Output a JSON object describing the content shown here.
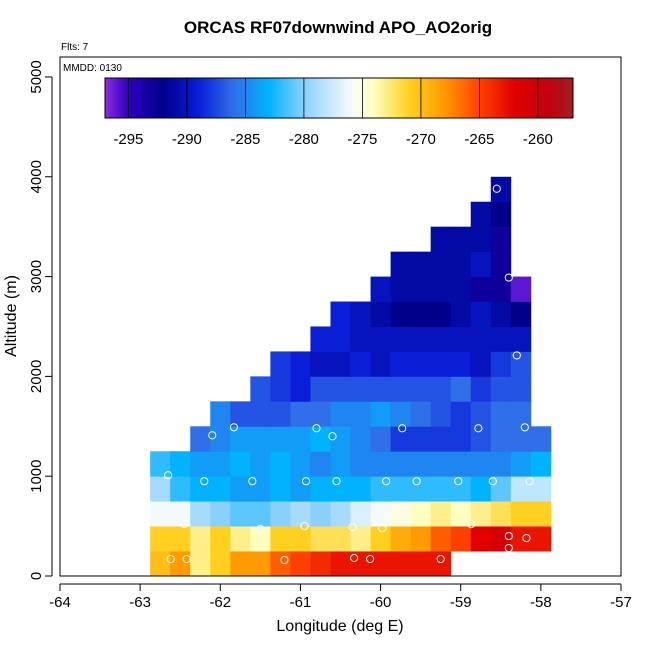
{
  "chart_data": {
    "type": "heatmap",
    "title": "ORCAS RF07downwind APO_AO2orig",
    "flights_label": "Flts: 7",
    "date_label": "MMDD: 0130",
    "xlabel": "Longitude (deg E)",
    "ylabel": "Altitude (m)",
    "xlim": [
      -64,
      -57
    ],
    "ylim": [
      0,
      5200
    ],
    "xticks": [
      -64,
      -63,
      -62,
      -61,
      -60,
      -59,
      -58,
      -57
    ],
    "yticks": [
      0,
      1000,
      2000,
      3000,
      4000,
      5000
    ],
    "colorbar": {
      "range": [
        -297,
        -257
      ],
      "ticks": [
        -295,
        -290,
        -285,
        -280,
        -275,
        -270,
        -265,
        -260
      ]
    },
    "cell": {
      "dx": 0.25,
      "dy": 250
    },
    "cells": [
      {
        "lon": -62.75,
        "alt": 125,
        "v": -270
      },
      {
        "lon": -62.5,
        "alt": 125,
        "v": -268
      },
      {
        "lon": -62.25,
        "alt": 125,
        "v": -273
      },
      {
        "lon": -62.0,
        "alt": 125,
        "v": -271
      },
      {
        "lon": -61.75,
        "alt": 125,
        "v": -268
      },
      {
        "lon": -61.5,
        "alt": 125,
        "v": -268
      },
      {
        "lon": -61.25,
        "alt": 125,
        "v": -266
      },
      {
        "lon": -61.0,
        "alt": 125,
        "v": -265
      },
      {
        "lon": -60.75,
        "alt": 125,
        "v": -264
      },
      {
        "lon": -60.5,
        "alt": 125,
        "v": -263
      },
      {
        "lon": -60.25,
        "alt": 125,
        "v": -263
      },
      {
        "lon": -60.0,
        "alt": 125,
        "v": -263
      },
      {
        "lon": -59.75,
        "alt": 125,
        "v": -263
      },
      {
        "lon": -59.5,
        "alt": 125,
        "v": -263
      },
      {
        "lon": -59.25,
        "alt": 125,
        "v": -263
      },
      {
        "lon": -62.75,
        "alt": 375,
        "v": -271
      },
      {
        "lon": -62.5,
        "alt": 375,
        "v": -271
      },
      {
        "lon": -62.25,
        "alt": 375,
        "v": -273
      },
      {
        "lon": -62.0,
        "alt": 375,
        "v": -271
      },
      {
        "lon": -61.75,
        "alt": 375,
        "v": -273
      },
      {
        "lon": -61.5,
        "alt": 375,
        "v": -274
      },
      {
        "lon": -61.25,
        "alt": 375,
        "v": -271
      },
      {
        "lon": -61.0,
        "alt": 375,
        "v": -271
      },
      {
        "lon": -60.75,
        "alt": 375,
        "v": -272
      },
      {
        "lon": -60.5,
        "alt": 375,
        "v": -272
      },
      {
        "lon": -60.25,
        "alt": 375,
        "v": -273
      },
      {
        "lon": -60.0,
        "alt": 375,
        "v": -271
      },
      {
        "lon": -59.75,
        "alt": 375,
        "v": -269
      },
      {
        "lon": -59.5,
        "alt": 375,
        "v": -268
      },
      {
        "lon": -59.25,
        "alt": 375,
        "v": -266
      },
      {
        "lon": -59.0,
        "alt": 375,
        "v": -265
      },
      {
        "lon": -58.75,
        "alt": 375,
        "v": -262
      },
      {
        "lon": -58.5,
        "alt": 375,
        "v": -261
      },
      {
        "lon": -58.25,
        "alt": 375,
        "v": -263
      },
      {
        "lon": -58.0,
        "alt": 375,
        "v": -263
      },
      {
        "lon": -62.75,
        "alt": 625,
        "v": -276
      },
      {
        "lon": -62.5,
        "alt": 625,
        "v": -276
      },
      {
        "lon": -62.25,
        "alt": 625,
        "v": -279
      },
      {
        "lon": -62.0,
        "alt": 625,
        "v": -280
      },
      {
        "lon": -61.75,
        "alt": 625,
        "v": -281
      },
      {
        "lon": -61.5,
        "alt": 625,
        "v": -281
      },
      {
        "lon": -61.25,
        "alt": 625,
        "v": -280
      },
      {
        "lon": -61.0,
        "alt": 625,
        "v": -279
      },
      {
        "lon": -60.75,
        "alt": 625,
        "v": -280
      },
      {
        "lon": -60.5,
        "alt": 625,
        "v": -279
      },
      {
        "lon": -60.25,
        "alt": 625,
        "v": -277
      },
      {
        "lon": -60.0,
        "alt": 625,
        "v": -276
      },
      {
        "lon": -59.75,
        "alt": 625,
        "v": -275
      },
      {
        "lon": -59.5,
        "alt": 625,
        "v": -274
      },
      {
        "lon": -59.25,
        "alt": 625,
        "v": -273
      },
      {
        "lon": -59.0,
        "alt": 625,
        "v": -274
      },
      {
        "lon": -58.75,
        "alt": 625,
        "v": -273
      },
      {
        "lon": -58.5,
        "alt": 625,
        "v": -272
      },
      {
        "lon": -58.25,
        "alt": 625,
        "v": -271
      },
      {
        "lon": -58.0,
        "alt": 625,
        "v": -271
      },
      {
        "lon": -62.75,
        "alt": 875,
        "v": -279
      },
      {
        "lon": -62.5,
        "alt": 875,
        "v": -282
      },
      {
        "lon": -62.25,
        "alt": 875,
        "v": -283
      },
      {
        "lon": -62.0,
        "alt": 875,
        "v": -283
      },
      {
        "lon": -61.75,
        "alt": 875,
        "v": -284
      },
      {
        "lon": -61.5,
        "alt": 875,
        "v": -284
      },
      {
        "lon": -61.25,
        "alt": 875,
        "v": -283
      },
      {
        "lon": -61.0,
        "alt": 875,
        "v": -284
      },
      {
        "lon": -60.75,
        "alt": 875,
        "v": -283
      },
      {
        "lon": -60.5,
        "alt": 875,
        "v": -283
      },
      {
        "lon": -60.25,
        "alt": 875,
        "v": -283
      },
      {
        "lon": -60.0,
        "alt": 875,
        "v": -282
      },
      {
        "lon": -59.75,
        "alt": 875,
        "v": -282
      },
      {
        "lon": -59.5,
        "alt": 875,
        "v": -282
      },
      {
        "lon": -59.25,
        "alt": 875,
        "v": -282
      },
      {
        "lon": -59.0,
        "alt": 875,
        "v": -282
      },
      {
        "lon": -58.75,
        "alt": 875,
        "v": -283
      },
      {
        "lon": -58.5,
        "alt": 875,
        "v": -281
      },
      {
        "lon": -58.25,
        "alt": 875,
        "v": -278
      },
      {
        "lon": -58.0,
        "alt": 875,
        "v": -278
      },
      {
        "lon": -62.75,
        "alt": 1125,
        "v": -282
      },
      {
        "lon": -62.5,
        "alt": 1125,
        "v": -283
      },
      {
        "lon": -62.25,
        "alt": 1125,
        "v": -284
      },
      {
        "lon": -62.0,
        "alt": 1125,
        "v": -284
      },
      {
        "lon": -61.75,
        "alt": 1125,
        "v": -283
      },
      {
        "lon": -61.5,
        "alt": 1125,
        "v": -284
      },
      {
        "lon": -61.25,
        "alt": 1125,
        "v": -283
      },
      {
        "lon": -61.0,
        "alt": 1125,
        "v": -284
      },
      {
        "lon": -60.75,
        "alt": 1125,
        "v": -285
      },
      {
        "lon": -60.5,
        "alt": 1125,
        "v": -284
      },
      {
        "lon": -60.25,
        "alt": 1125,
        "v": -285
      },
      {
        "lon": -60.0,
        "alt": 1125,
        "v": -285
      },
      {
        "lon": -59.75,
        "alt": 1125,
        "v": -285
      },
      {
        "lon": -59.5,
        "alt": 1125,
        "v": -285
      },
      {
        "lon": -59.25,
        "alt": 1125,
        "v": -285
      },
      {
        "lon": -59.0,
        "alt": 1125,
        "v": -285
      },
      {
        "lon": -58.75,
        "alt": 1125,
        "v": -285
      },
      {
        "lon": -58.5,
        "alt": 1125,
        "v": -285
      },
      {
        "lon": -58.25,
        "alt": 1125,
        "v": -284
      },
      {
        "lon": -58.0,
        "alt": 1125,
        "v": -283
      },
      {
        "lon": -62.25,
        "alt": 1375,
        "v": -286
      },
      {
        "lon": -62.0,
        "alt": 1375,
        "v": -285
      },
      {
        "lon": -61.75,
        "alt": 1375,
        "v": -284
      },
      {
        "lon": -61.5,
        "alt": 1375,
        "v": -284
      },
      {
        "lon": -61.25,
        "alt": 1375,
        "v": -284
      },
      {
        "lon": -61.0,
        "alt": 1375,
        "v": -284
      },
      {
        "lon": -60.75,
        "alt": 1375,
        "v": -283
      },
      {
        "lon": -60.5,
        "alt": 1375,
        "v": -284
      },
      {
        "lon": -60.25,
        "alt": 1375,
        "v": -285
      },
      {
        "lon": -60.0,
        "alt": 1375,
        "v": -286
      },
      {
        "lon": -59.75,
        "alt": 1375,
        "v": -288
      },
      {
        "lon": -59.5,
        "alt": 1375,
        "v": -288
      },
      {
        "lon": -59.25,
        "alt": 1375,
        "v": -288
      },
      {
        "lon": -59.0,
        "alt": 1375,
        "v": -288
      },
      {
        "lon": -58.75,
        "alt": 1375,
        "v": -287
      },
      {
        "lon": -58.5,
        "alt": 1375,
        "v": -286
      },
      {
        "lon": -58.25,
        "alt": 1375,
        "v": -286
      },
      {
        "lon": -58.0,
        "alt": 1375,
        "v": -286
      },
      {
        "lon": -62.0,
        "alt": 1625,
        "v": -285
      },
      {
        "lon": -61.75,
        "alt": 1625,
        "v": -287
      },
      {
        "lon": -61.5,
        "alt": 1625,
        "v": -287
      },
      {
        "lon": -61.25,
        "alt": 1625,
        "v": -287
      },
      {
        "lon": -61.0,
        "alt": 1625,
        "v": -286
      },
      {
        "lon": -60.75,
        "alt": 1625,
        "v": -286
      },
      {
        "lon": -60.5,
        "alt": 1625,
        "v": -285
      },
      {
        "lon": -60.25,
        "alt": 1625,
        "v": -285
      },
      {
        "lon": -60.0,
        "alt": 1625,
        "v": -284
      },
      {
        "lon": -59.75,
        "alt": 1625,
        "v": -285
      },
      {
        "lon": -59.5,
        "alt": 1625,
        "v": -286
      },
      {
        "lon": -59.25,
        "alt": 1625,
        "v": -287
      },
      {
        "lon": -59.0,
        "alt": 1625,
        "v": -288
      },
      {
        "lon": -58.75,
        "alt": 1625,
        "v": -287
      },
      {
        "lon": -58.5,
        "alt": 1625,
        "v": -286
      },
      {
        "lon": -58.25,
        "alt": 1625,
        "v": -286
      },
      {
        "lon": -61.5,
        "alt": 1875,
        "v": -287
      },
      {
        "lon": -61.25,
        "alt": 1875,
        "v": -288
      },
      {
        "lon": -61.0,
        "alt": 1875,
        "v": -289
      },
      {
        "lon": -60.75,
        "alt": 1875,
        "v": -287
      },
      {
        "lon": -60.5,
        "alt": 1875,
        "v": -287
      },
      {
        "lon": -60.25,
        "alt": 1875,
        "v": -287
      },
      {
        "lon": -60.0,
        "alt": 1875,
        "v": -287
      },
      {
        "lon": -59.75,
        "alt": 1875,
        "v": -287
      },
      {
        "lon": -59.5,
        "alt": 1875,
        "v": -287
      },
      {
        "lon": -59.25,
        "alt": 1875,
        "v": -287
      },
      {
        "lon": -59.0,
        "alt": 1875,
        "v": -286
      },
      {
        "lon": -58.75,
        "alt": 1875,
        "v": -288
      },
      {
        "lon": -58.5,
        "alt": 1875,
        "v": -287
      },
      {
        "lon": -58.25,
        "alt": 1875,
        "v": -287
      },
      {
        "lon": -61.25,
        "alt": 2125,
        "v": -288
      },
      {
        "lon": -61.0,
        "alt": 2125,
        "v": -289
      },
      {
        "lon": -60.75,
        "alt": 2125,
        "v": -290
      },
      {
        "lon": -60.5,
        "alt": 2125,
        "v": -290
      },
      {
        "lon": -60.25,
        "alt": 2125,
        "v": -289
      },
      {
        "lon": -60.0,
        "alt": 2125,
        "v": -290
      },
      {
        "lon": -59.75,
        "alt": 2125,
        "v": -289
      },
      {
        "lon": -59.5,
        "alt": 2125,
        "v": -289
      },
      {
        "lon": -59.25,
        "alt": 2125,
        "v": -289
      },
      {
        "lon": -59.0,
        "alt": 2125,
        "v": -289
      },
      {
        "lon": -58.75,
        "alt": 2125,
        "v": -290
      },
      {
        "lon": -58.5,
        "alt": 2125,
        "v": -288
      },
      {
        "lon": -58.25,
        "alt": 2125,
        "v": -287
      },
      {
        "lon": -60.75,
        "alt": 2375,
        "v": -289
      },
      {
        "lon": -60.5,
        "alt": 2375,
        "v": -289
      },
      {
        "lon": -60.25,
        "alt": 2375,
        "v": -290
      },
      {
        "lon": -60.0,
        "alt": 2375,
        "v": -290
      },
      {
        "lon": -59.75,
        "alt": 2375,
        "v": -290
      },
      {
        "lon": -59.5,
        "alt": 2375,
        "v": -290
      },
      {
        "lon": -59.25,
        "alt": 2375,
        "v": -290
      },
      {
        "lon": -59.0,
        "alt": 2375,
        "v": -290
      },
      {
        "lon": -58.75,
        "alt": 2375,
        "v": -290
      },
      {
        "lon": -58.5,
        "alt": 2375,
        "v": -290
      },
      {
        "lon": -58.25,
        "alt": 2375,
        "v": -290
      },
      {
        "lon": -60.5,
        "alt": 2625,
        "v": -289
      },
      {
        "lon": -60.25,
        "alt": 2625,
        "v": -290
      },
      {
        "lon": -60.0,
        "alt": 2625,
        "v": -291
      },
      {
        "lon": -59.75,
        "alt": 2625,
        "v": -292
      },
      {
        "lon": -59.5,
        "alt": 2625,
        "v": -292
      },
      {
        "lon": -59.25,
        "alt": 2625,
        "v": -292
      },
      {
        "lon": -59.0,
        "alt": 2625,
        "v": -291
      },
      {
        "lon": -58.75,
        "alt": 2625,
        "v": -290
      },
      {
        "lon": -58.5,
        "alt": 2625,
        "v": -291
      },
      {
        "lon": -58.25,
        "alt": 2625,
        "v": -292
      },
      {
        "lon": -60.0,
        "alt": 2875,
        "v": -290
      },
      {
        "lon": -59.75,
        "alt": 2875,
        "v": -291
      },
      {
        "lon": -59.5,
        "alt": 2875,
        "v": -291
      },
      {
        "lon": -59.25,
        "alt": 2875,
        "v": -291
      },
      {
        "lon": -59.0,
        "alt": 2875,
        "v": -291
      },
      {
        "lon": -58.75,
        "alt": 2875,
        "v": -293
      },
      {
        "lon": -58.5,
        "alt": 2875,
        "v": -293
      },
      {
        "lon": -58.25,
        "alt": 2875,
        "v": -296
      },
      {
        "lon": -59.75,
        "alt": 3125,
        "v": -291
      },
      {
        "lon": -59.5,
        "alt": 3125,
        "v": -291
      },
      {
        "lon": -59.25,
        "alt": 3125,
        "v": -291
      },
      {
        "lon": -59.0,
        "alt": 3125,
        "v": -291
      },
      {
        "lon": -58.75,
        "alt": 3125,
        "v": -290
      },
      {
        "lon": -58.5,
        "alt": 3125,
        "v": -293
      },
      {
        "lon": -59.25,
        "alt": 3375,
        "v": -291
      },
      {
        "lon": -59.0,
        "alt": 3375,
        "v": -291
      },
      {
        "lon": -58.75,
        "alt": 3375,
        "v": -291
      },
      {
        "lon": -58.5,
        "alt": 3375,
        "v": -293
      },
      {
        "lon": -58.75,
        "alt": 3625,
        "v": -291
      },
      {
        "lon": -58.5,
        "alt": 3625,
        "v": -292
      },
      {
        "lon": -58.5,
        "alt": 3875,
        "v": -291
      }
    ],
    "points": [
      {
        "lon": -62.62,
        "alt": 170
      },
      {
        "lon": -62.42,
        "alt": 170
      },
      {
        "lon": -61.2,
        "alt": 160
      },
      {
        "lon": -60.33,
        "alt": 180
      },
      {
        "lon": -60.13,
        "alt": 170
      },
      {
        "lon": -59.25,
        "alt": 170
      },
      {
        "lon": -62.45,
        "alt": 520
      },
      {
        "lon": -61.5,
        "alt": 470
      },
      {
        "lon": -60.95,
        "alt": 500
      },
      {
        "lon": -60.35,
        "alt": 490
      },
      {
        "lon": -59.98,
        "alt": 480
      },
      {
        "lon": -58.87,
        "alt": 520
      },
      {
        "lon": -58.4,
        "alt": 400
      },
      {
        "lon": -58.4,
        "alt": 280
      },
      {
        "lon": -58.18,
        "alt": 380
      },
      {
        "lon": -62.65,
        "alt": 1010
      },
      {
        "lon": -62.2,
        "alt": 950
      },
      {
        "lon": -61.6,
        "alt": 950
      },
      {
        "lon": -60.93,
        "alt": 950
      },
      {
        "lon": -60.55,
        "alt": 950
      },
      {
        "lon": -59.93,
        "alt": 950
      },
      {
        "lon": -59.55,
        "alt": 950
      },
      {
        "lon": -59.03,
        "alt": 950
      },
      {
        "lon": -58.6,
        "alt": 950
      },
      {
        "lon": -58.14,
        "alt": 950
      },
      {
        "lon": -62.1,
        "alt": 1410
      },
      {
        "lon": -61.83,
        "alt": 1490
      },
      {
        "lon": -60.8,
        "alt": 1480
      },
      {
        "lon": -60.6,
        "alt": 1400
      },
      {
        "lon": -59.73,
        "alt": 1480
      },
      {
        "lon": -58.78,
        "alt": 1480
      },
      {
        "lon": -58.2,
        "alt": 1490
      },
      {
        "lon": -58.3,
        "alt": 2210
      },
      {
        "lon": -58.4,
        "alt": 2990
      },
      {
        "lon": -58.55,
        "alt": 3880
      }
    ]
  }
}
